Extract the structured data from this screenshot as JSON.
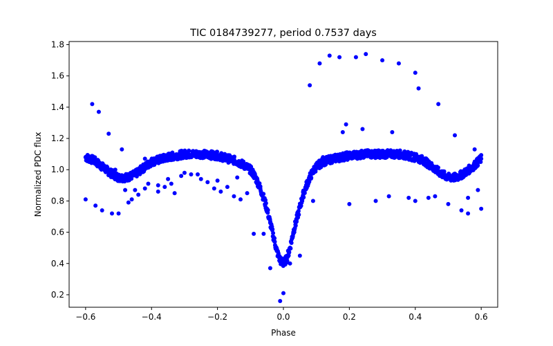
{
  "chart_data": {
    "type": "scatter",
    "title": "TIC 0184739277, period 0.7537 days",
    "xlabel": "Phase",
    "ylabel": "Normalized PDC flux",
    "xlim": [
      -0.65,
      0.65
    ],
    "ylim": [
      0.12,
      1.82
    ],
    "xticks": [
      -0.6,
      -0.4,
      -0.2,
      0.0,
      0.2,
      0.4,
      0.6
    ],
    "xtick_labels": [
      "−0.6",
      "−0.4",
      "−0.2",
      "0.0",
      "0.2",
      "0.4",
      "0.6"
    ],
    "yticks": [
      0.2,
      0.4,
      0.6,
      0.8,
      1.0,
      1.2,
      1.4,
      1.6,
      1.8
    ],
    "ytick_labels": [
      "0.2",
      "0.4",
      "0.6",
      "0.8",
      "1.0",
      "1.2",
      "1.4",
      "1.6",
      "1.8"
    ],
    "marker_color": "#0000ff",
    "grid": false,
    "main_curve_samples": {
      "x": [
        -0.6,
        -0.575,
        -0.55,
        -0.525,
        -0.5,
        -0.475,
        -0.45,
        -0.425,
        -0.4,
        -0.35,
        -0.3,
        -0.25,
        -0.2,
        -0.15,
        -0.12,
        -0.1,
        -0.09,
        -0.08,
        -0.07,
        -0.06,
        -0.05,
        -0.04,
        -0.03,
        -0.02,
        -0.01,
        0.0,
        0.01,
        0.02,
        0.03,
        0.04,
        0.05,
        0.06,
        0.07,
        0.08,
        0.09,
        0.1,
        0.12,
        0.15,
        0.2,
        0.25,
        0.3,
        0.35,
        0.4,
        0.425,
        0.45,
        0.475,
        0.5,
        0.525,
        0.55,
        0.575,
        0.6
      ],
      "y": [
        1.08,
        1.06,
        1.02,
        0.98,
        0.95,
        0.95,
        0.97,
        1.01,
        1.05,
        1.08,
        1.1,
        1.1,
        1.09,
        1.06,
        1.03,
        1.0,
        0.97,
        0.93,
        0.88,
        0.82,
        0.75,
        0.66,
        0.57,
        0.48,
        0.42,
        0.4,
        0.43,
        0.5,
        0.6,
        0.68,
        0.76,
        0.84,
        0.9,
        0.95,
        0.99,
        1.02,
        1.05,
        1.07,
        1.09,
        1.1,
        1.1,
        1.1,
        1.08,
        1.06,
        1.02,
        0.98,
        0.95,
        0.95,
        0.98,
        1.02,
        1.07
      ]
    },
    "outlier_points": {
      "x": [
        -0.6,
        -0.58,
        -0.57,
        -0.56,
        -0.55,
        -0.53,
        -0.52,
        -0.51,
        -0.5,
        -0.49,
        -0.47,
        -0.46,
        -0.45,
        -0.44,
        -0.42,
        -0.41,
        -0.38,
        -0.36,
        -0.35,
        -0.33,
        -0.31,
        -0.3,
        -0.28,
        -0.25,
        -0.23,
        -0.21,
        -0.19,
        -0.17,
        -0.15,
        -0.13,
        -0.11,
        -0.09,
        -0.06,
        -0.04,
        -0.01,
        0.0,
        0.02,
        0.05,
        0.08,
        0.09,
        0.11,
        0.14,
        0.17,
        0.19,
        0.2,
        0.22,
        0.24,
        0.25,
        0.28,
        0.3,
        0.33,
        0.35,
        0.38,
        0.4,
        0.41,
        0.44,
        0.47,
        0.5,
        0.52,
        0.54,
        0.56,
        0.58,
        0.6
      ],
      "y": [
        0.81,
        1.42,
        0.77,
        1.37,
        0.74,
        1.23,
        0.72,
        1.0,
        0.72,
        1.13,
        0.79,
        0.81,
        0.87,
        0.84,
        0.88,
        0.91,
        0.9,
        0.89,
        0.94,
        0.85,
        0.96,
        0.98,
        0.97,
        0.94,
        0.92,
        0.88,
        0.86,
        0.89,
        0.83,
        0.81,
        0.85,
        0.59,
        0.59,
        0.37,
        0.16,
        0.21,
        0.4,
        0.45,
        1.54,
        0.8,
        1.68,
        1.73,
        1.72,
        1.29,
        0.78,
        1.72,
        1.26,
        1.74,
        0.8,
        1.7,
        1.24,
        1.68,
        0.82,
        1.62,
        1.52,
        0.82,
        1.42,
        0.78,
        1.22,
        0.74,
        0.72,
        1.13,
        0.75
      ],
      "x2": [
        -0.48,
        -0.42,
        -0.38,
        -0.34,
        -0.26,
        -0.2,
        -0.14,
        -0.08,
        0.12,
        0.18,
        0.26,
        0.32,
        0.4,
        0.46,
        0.56,
        0.59
      ],
      "y2": [
        0.87,
        1.07,
        0.86,
        0.91,
        0.97,
        0.93,
        0.95,
        0.92,
        1.08,
        1.24,
        1.12,
        0.83,
        0.8,
        0.83,
        0.82,
        0.87
      ]
    }
  }
}
